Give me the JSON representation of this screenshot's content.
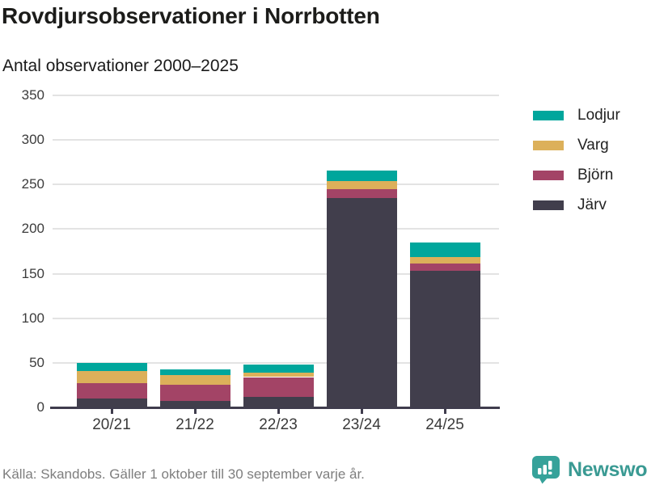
{
  "header": {
    "title": "Rovdjursobservationer i Norrbotten",
    "subtitle": "Antal observationer 2000–2025"
  },
  "chart_data": {
    "type": "bar",
    "stacked": true,
    "title": "Rovdjursobservationer i Norrbotten",
    "subtitle": "Antal observationer 2000–2025",
    "categories": [
      "20/21",
      "21/22",
      "22/23",
      "23/24",
      "24/25"
    ],
    "series": [
      {
        "name": "Järv",
        "color": "#413e4c",
        "values": [
          10,
          7,
          12,
          235,
          153
        ]
      },
      {
        "name": "Björn",
        "color": "#a34466",
        "values": [
          17,
          18,
          22,
          10,
          8
        ]
      },
      {
        "name": "Varg",
        "color": "#dcb05a",
        "values": [
          14,
          11,
          5,
          9,
          8
        ]
      },
      {
        "name": "Lodjur",
        "color": "#00a69c",
        "values": [
          9,
          7,
          9,
          12,
          16
        ]
      }
    ],
    "stack_order": "bottom-to-top",
    "totals": [
      50,
      43,
      48,
      266,
      185
    ],
    "legend": [
      "Lodjur",
      "Varg",
      "Björn",
      "Järv"
    ],
    "legend_position": "right",
    "xlabel": "",
    "ylabel": "",
    "ylim": [
      0,
      350
    ],
    "yticks": [
      0,
      50,
      100,
      150,
      200,
      250,
      300,
      350
    ],
    "grid": true,
    "grid_color": "#e3e3e3",
    "axis_color": "#3f3c4d"
  },
  "footer": {
    "source": "Källa: Skandobs. Gäller 1 oktober till 30 september varje år.",
    "brand": "Newsworthy",
    "brand_color": "#3a9a93"
  }
}
